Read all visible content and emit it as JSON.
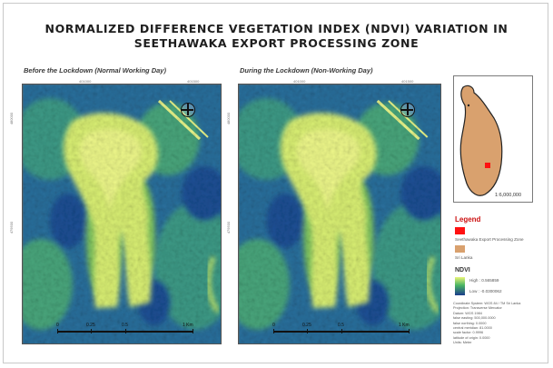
{
  "title_line1": "NORMALIZED DIFFERENCE VEGETATION INDEX (NDVI) VARIATION IN",
  "title_line2": "SEETHAWAKA EXPORT PROCESSING ZONE",
  "panel_left": {
    "subtitle": "Before the Lockdown (Normal Working Day)",
    "scale_labels": [
      "0",
      "0.25",
      "0.5",
      "1 Km"
    ]
  },
  "panel_right": {
    "subtitle": "During the Lockdown (Non-Working Day)",
    "scale_labels": [
      "0",
      "0.25",
      "0.5",
      "1 Km"
    ]
  },
  "grid_labels": {
    "top_left": "401000",
    "top_right": "401500",
    "left_top": "480000",
    "left_bottom": "479500"
  },
  "inset": {
    "scale": "1:6,000,000"
  },
  "legend": {
    "title": "Legend",
    "items": [
      {
        "label": "Seethawaka Export Processing Zone",
        "color": "#ff1111"
      },
      {
        "label": "Sri Lanka",
        "color": "#d9a16e"
      }
    ],
    "ndvi_title": "NDVI",
    "high_label": "High : 0.565859",
    "low_label": "Low : -0.0300062"
  },
  "metadata": [
    "Coordinate System: WGS 84 / TM Sri Lanka",
    "Projection: Transverse Mercator",
    "Datum: WGS 1984",
    "false easting: 500,000.0000",
    "false northing: 0.0000",
    "central meridian: 81.0000",
    "scale factor: 0.9996",
    "latitude of origin: 0.0000",
    "Units: Meter"
  ],
  "colors": {
    "water_dark": "#1b3c8c",
    "vegetation_mid": "#2a8a86",
    "built_bright": "#e8f478",
    "zone_marker": "#ff1111",
    "sri_lanka": "#d9a16e"
  }
}
